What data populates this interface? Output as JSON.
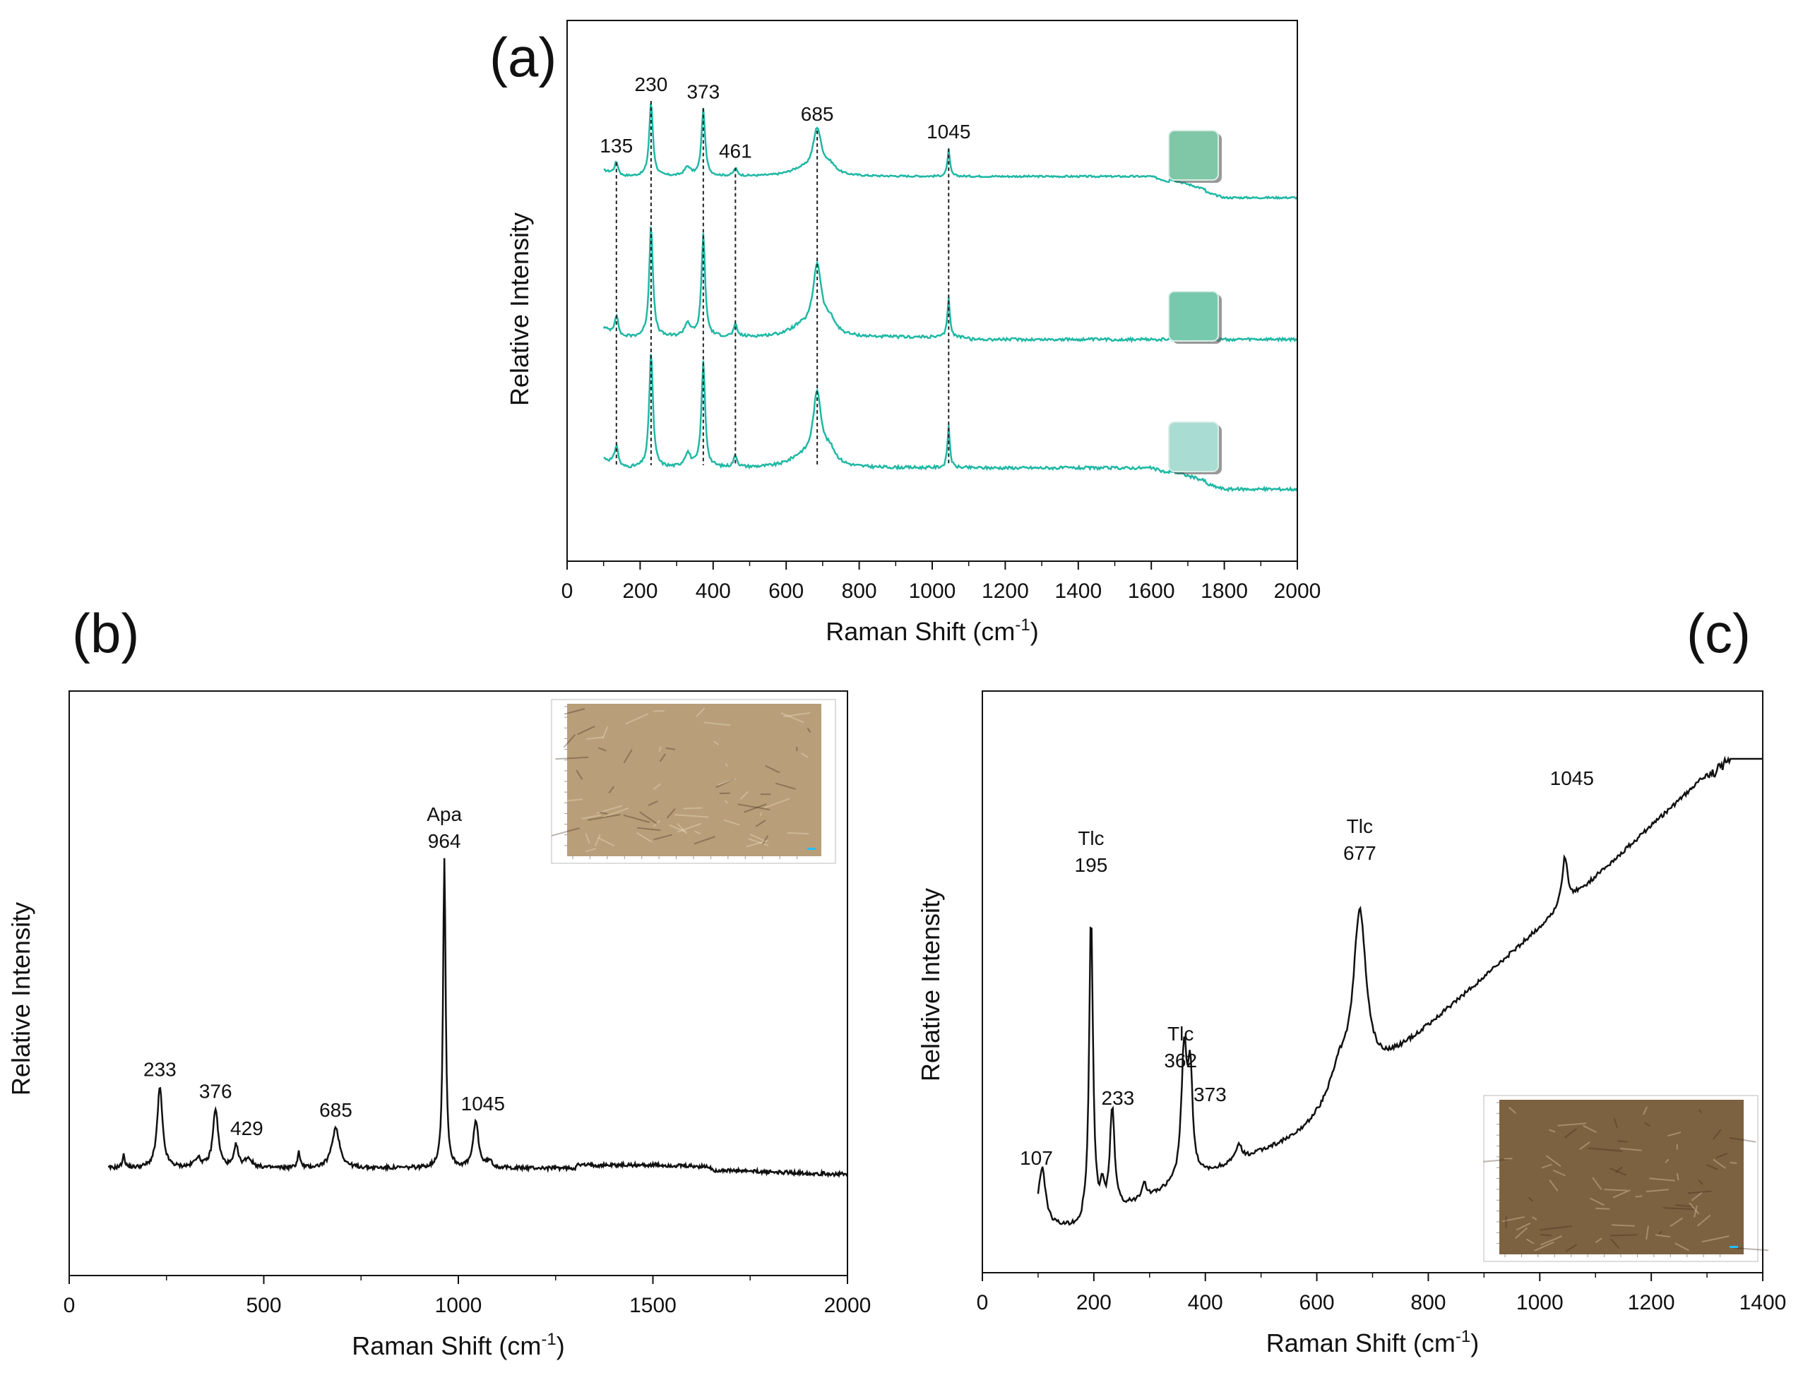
{
  "panel_labels": {
    "a": "(a)",
    "b": "(b)",
    "c": "(c)"
  },
  "chart_data": [
    {
      "id": "a",
      "type": "line",
      "title": "",
      "xlabel": "Raman Shift (cm-1)",
      "xlabel_base": "Raman Shift (cm",
      "xlabel_sup": "-1",
      "xlabel_end": ")",
      "ylabel": "Relative Intensity",
      "xlim": [
        0,
        2000
      ],
      "xticks": [
        0,
        200,
        400,
        600,
        800,
        1000,
        1200,
        1400,
        1600,
        1800,
        2000
      ],
      "color": "#1fb8a4",
      "grid": false,
      "series": [
        {
          "name": "top spectrum",
          "offset": 2,
          "fluorescence": true,
          "sample_color": "#7fc7a6"
        },
        {
          "name": "middle spectrum",
          "offset": 1,
          "fluorescence": false,
          "sample_color": "#77c9ae"
        },
        {
          "name": "bottom spectrum",
          "offset": 0,
          "fluorescence": true,
          "sample_color": "#a9dcd2"
        }
      ],
      "peaks": [
        {
          "x": 135,
          "label": "135",
          "height": 0.17
        },
        {
          "x": 230,
          "label": "230",
          "height": 1.0
        },
        {
          "x": 373,
          "label": "373",
          "height": 0.9
        },
        {
          "x": 461,
          "label": "461",
          "height": 0.1
        },
        {
          "x": 685,
          "label": "685",
          "height": 0.6
        },
        {
          "x": 1045,
          "label": "1045",
          "height": 0.36
        }
      ],
      "dashed_lines_at": [
        135,
        230,
        373,
        461,
        685,
        1045
      ]
    },
    {
      "id": "b",
      "type": "line",
      "xlabel_base": "Raman Shift (cm",
      "xlabel_sup": "-1",
      "xlabel_end": ")",
      "ylabel": "Relative Intensity",
      "xlim": [
        0,
        2000
      ],
      "xticks": [
        0,
        500,
        1000,
        1500,
        2000
      ],
      "color": "#111111",
      "annotations": [
        {
          "x": 233,
          "label": "233"
        },
        {
          "x": 376,
          "label": "376"
        },
        {
          "x": 429,
          "label": "429"
        },
        {
          "x": 685,
          "label": "685"
        },
        {
          "x": 964,
          "label": "964",
          "mineral": "Apa"
        },
        {
          "x": 1045,
          "label": "1045"
        }
      ],
      "peaks": [
        {
          "x": 233,
          "height": 0.26,
          "width": 8
        },
        {
          "x": 376,
          "height": 0.19,
          "width": 8
        },
        {
          "x": 429,
          "height": 0.07,
          "width": 6
        },
        {
          "x": 685,
          "height": 0.13,
          "width": 12
        },
        {
          "x": 964,
          "height": 1.0,
          "width": 4
        },
        {
          "x": 1045,
          "height": 0.15,
          "width": 8
        },
        {
          "x": 590,
          "height": 0.05,
          "width": 4
        },
        {
          "x": 140,
          "height": 0.04,
          "width": 4
        }
      ],
      "inset": {
        "corner": "top-right",
        "tone": "#b89f7a"
      }
    },
    {
      "id": "c",
      "type": "line",
      "xlabel_base": "Raman Shift (cm",
      "xlabel_sup": "-1",
      "xlabel_end": ")",
      "ylabel": "Relative Intensity",
      "xlim": [
        0,
        1400
      ],
      "xticks": [
        0,
        200,
        400,
        600,
        800,
        1000,
        1200,
        1400
      ],
      "color": "#111111",
      "annotations": [
        {
          "x": 107,
          "label": "107"
        },
        {
          "x": 195,
          "label": "195",
          "mineral": "Tlc"
        },
        {
          "x": 233,
          "label": "233"
        },
        {
          "x": 362,
          "label": "362",
          "mineral": "Tlc"
        },
        {
          "x": 373,
          "label": "373"
        },
        {
          "x": 677,
          "label": "677",
          "mineral": "Tlc"
        },
        {
          "x": 1045,
          "label": "1045"
        }
      ],
      "peaks": [
        {
          "x": 107,
          "height": 0.15,
          "width": 8
        },
        {
          "x": 195,
          "height": 0.78,
          "width": 4
        },
        {
          "x": 233,
          "height": 0.26,
          "width": 5
        },
        {
          "x": 362,
          "height": 0.33,
          "width": 6
        },
        {
          "x": 373,
          "height": 0.25,
          "width": 5
        },
        {
          "x": 677,
          "height": 0.43,
          "width": 14
        },
        {
          "x": 1045,
          "height": 0.12,
          "width": 6
        }
      ],
      "inset": {
        "corner": "bottom-right",
        "tone": "#7d6241"
      }
    }
  ]
}
